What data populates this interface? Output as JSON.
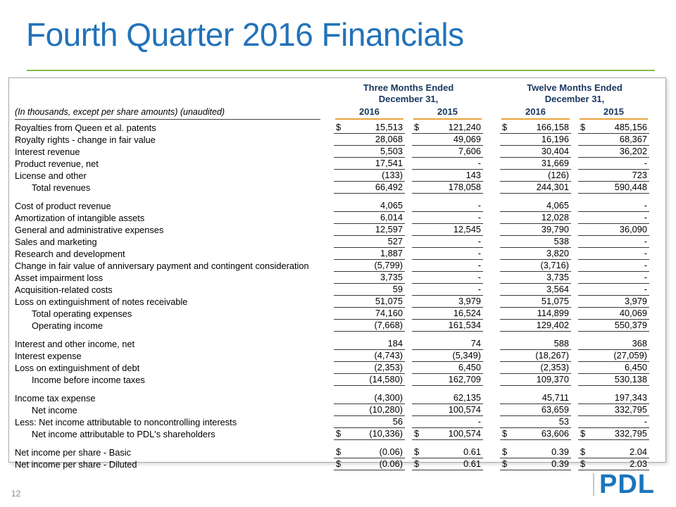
{
  "slide": {
    "title": "Fourth Quarter 2016 Financials",
    "page_number": "12",
    "logo_text": "PDL"
  },
  "colors": {
    "title_blue": "#2272B9",
    "rule_green": "#86BC4C",
    "header_navy": "#17375E",
    "year_underline_orange": "#E8A33D",
    "logo_blue": "#1B75BC"
  },
  "table": {
    "row_header": "(In thousands, except per share amounts) (unaudited)",
    "col_groups": [
      {
        "title": "Three Months Ended",
        "subtitle": "December 31,"
      },
      {
        "title": "Twelve Months Ended",
        "subtitle": "December 31,"
      }
    ],
    "years": [
      "2016",
      "2015",
      "2016",
      "2015"
    ],
    "rows": [
      {
        "label": "Royalties from Queen et al. patents",
        "indent": 0,
        "dollar": true,
        "gap": false,
        "values": [
          "15,513",
          "121,240",
          "166,158",
          "485,156"
        ]
      },
      {
        "label": "Royalty rights - change in fair value",
        "indent": 0,
        "dollar": false,
        "gap": false,
        "values": [
          "28,068",
          "49,069",
          "16,196",
          "68,367"
        ]
      },
      {
        "label": "Interest revenue",
        "indent": 0,
        "dollar": false,
        "gap": false,
        "values": [
          "5,503",
          "7,606",
          "30,404",
          "36,202"
        ]
      },
      {
        "label": "Product revenue, net",
        "indent": 0,
        "dollar": false,
        "gap": false,
        "values": [
          "17,541",
          "-",
          "31,669",
          "-"
        ]
      },
      {
        "label": "License and other",
        "indent": 0,
        "dollar": false,
        "gap": false,
        "values": [
          "(133)",
          "143",
          "(126)",
          "723"
        ]
      },
      {
        "label": "Total revenues",
        "indent": 1,
        "dollar": false,
        "gap": false,
        "values": [
          "66,492",
          "178,058",
          "244,301",
          "590,448"
        ]
      },
      {
        "label": "Cost of product revenue",
        "indent": 0,
        "dollar": false,
        "gap": true,
        "values": [
          "4,065",
          "-",
          "4,065",
          "-"
        ]
      },
      {
        "label": "Amortization of intangible assets",
        "indent": 0,
        "dollar": false,
        "gap": false,
        "values": [
          "6,014",
          "-",
          "12,028",
          "-"
        ]
      },
      {
        "label": "General and administrative expenses",
        "indent": 0,
        "dollar": false,
        "gap": false,
        "values": [
          "12,597",
          "12,545",
          "39,790",
          "36,090"
        ]
      },
      {
        "label": "Sales and marketing",
        "indent": 0,
        "dollar": false,
        "gap": false,
        "values": [
          "527",
          "-",
          "538",
          "-"
        ]
      },
      {
        "label": "Research and development",
        "indent": 0,
        "dollar": false,
        "gap": false,
        "values": [
          "1,887",
          "-",
          "3,820",
          "-"
        ]
      },
      {
        "label": "Change in fair value of anniversary payment and contingent consideration",
        "indent": 0,
        "dollar": false,
        "gap": false,
        "values": [
          "(5,799)",
          "-",
          "(3,716)",
          "-"
        ]
      },
      {
        "label": "Asset impairment loss",
        "indent": 0,
        "dollar": false,
        "gap": false,
        "values": [
          "3,735",
          "-",
          "3,735",
          "-"
        ]
      },
      {
        "label": "Acquisition-related costs",
        "indent": 0,
        "dollar": false,
        "gap": false,
        "values": [
          "59",
          "-",
          "3,564",
          "-"
        ]
      },
      {
        "label": "Loss on extinguishment of notes receivable",
        "indent": 0,
        "dollar": false,
        "gap": false,
        "values": [
          "51,075",
          "3,979",
          "51,075",
          "3,979"
        ]
      },
      {
        "label": "Total operating expenses",
        "indent": 1,
        "dollar": false,
        "gap": false,
        "values": [
          "74,160",
          "16,524",
          "114,899",
          "40,069"
        ]
      },
      {
        "label": "Operating income",
        "indent": 1,
        "dollar": false,
        "gap": false,
        "values": [
          "(7,668)",
          "161,534",
          "129,402",
          "550,379"
        ]
      },
      {
        "label": "Interest and other income, net",
        "indent": 0,
        "dollar": false,
        "gap": true,
        "values": [
          "184",
          "74",
          "588",
          "368"
        ]
      },
      {
        "label": "Interest expense",
        "indent": 0,
        "dollar": false,
        "gap": false,
        "values": [
          "(4,743)",
          "(5,349)",
          "(18,267)",
          "(27,059)"
        ]
      },
      {
        "label": "Loss on extinguishment of debt",
        "indent": 0,
        "dollar": false,
        "gap": false,
        "values": [
          "(2,353)",
          "6,450",
          "(2,353)",
          "6,450"
        ]
      },
      {
        "label": "Income before income taxes",
        "indent": 1,
        "dollar": false,
        "gap": false,
        "values": [
          "(14,580)",
          "162,709",
          "109,370",
          "530,138"
        ]
      },
      {
        "label": "Income tax expense",
        "indent": 0,
        "dollar": false,
        "gap": true,
        "values": [
          "(4,300)",
          "62,135",
          "45,711",
          "197,343"
        ]
      },
      {
        "label": "Net income",
        "indent": 1,
        "dollar": false,
        "gap": false,
        "values": [
          "(10,280)",
          "100,574",
          "63,659",
          "332,795"
        ]
      },
      {
        "label": "Less: Net income attributable to noncontrolling interests",
        "indent": 0,
        "dollar": false,
        "gap": false,
        "values": [
          "56",
          "-",
          "53",
          "-"
        ]
      },
      {
        "label": "Net income attributable to PDL's shareholders",
        "indent": 1,
        "dollar": true,
        "gap": false,
        "values": [
          "(10,336)",
          "100,574",
          "63,606",
          "332,795"
        ]
      },
      {
        "label": "Net income per share - Basic",
        "indent": 0,
        "dollar": true,
        "gap": true,
        "values": [
          "(0.06)",
          "0.61",
          "0.39",
          "2.04"
        ]
      },
      {
        "label": "Net income per share - Diluted",
        "indent": 0,
        "dollar": true,
        "gap": false,
        "values": [
          "(0.06)",
          "0.61",
          "0.39",
          "2.03"
        ]
      }
    ]
  }
}
